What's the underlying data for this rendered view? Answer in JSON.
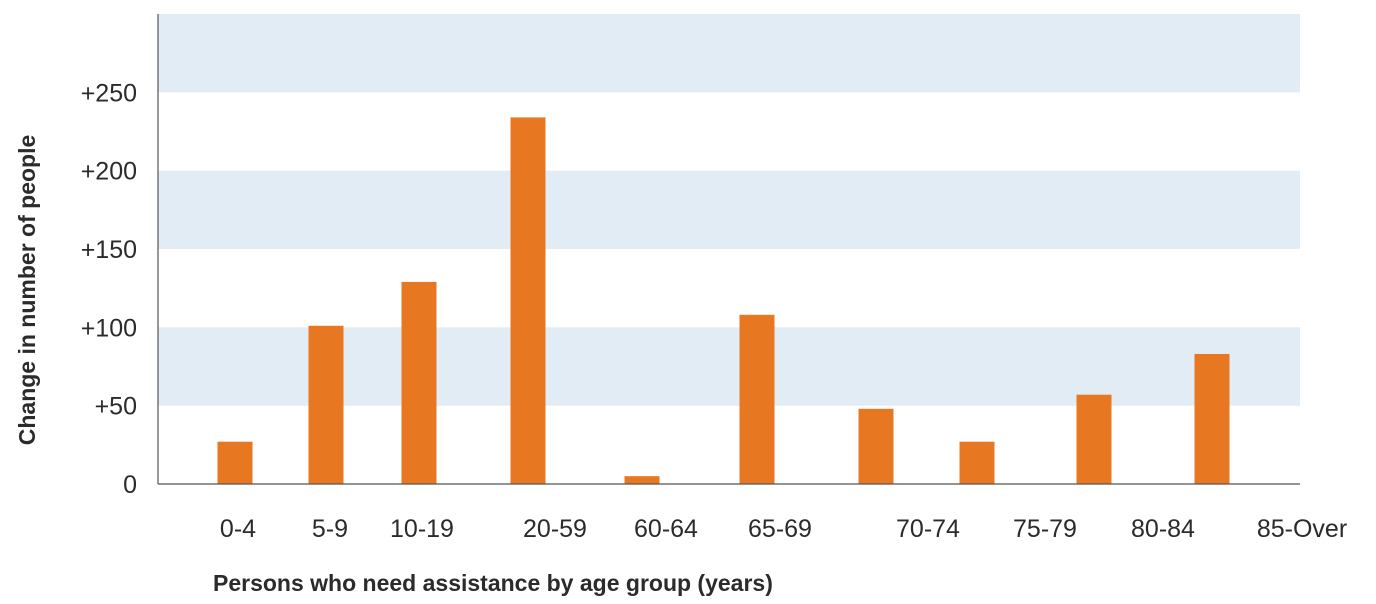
{
  "chart_data": {
    "type": "bar",
    "categories": [
      "0-4",
      "5-9",
      "10-19",
      "20-59",
      "60-64",
      "65-69",
      "70-74",
      "75-79",
      "80-84",
      "85-Over"
    ],
    "values": [
      27,
      101,
      129,
      234,
      5,
      108,
      48,
      27,
      57,
      83
    ],
    "title": "",
    "xlabel": "Persons who need assistance by age group (years)",
    "ylabel": "Change in number of people",
    "ylim": [
      0,
      300
    ],
    "yticks": [
      0,
      50,
      100,
      150,
      200,
      250
    ],
    "ytick_labels": [
      "0",
      "+50",
      "+100",
      "+150",
      "+200",
      "+250"
    ],
    "grid": "alternating horizontal bands",
    "legend": "none",
    "colors": {
      "bar": "#e87722",
      "band": "#e1ecf5",
      "axis": "#555555",
      "text": "#2b2b2b"
    }
  }
}
